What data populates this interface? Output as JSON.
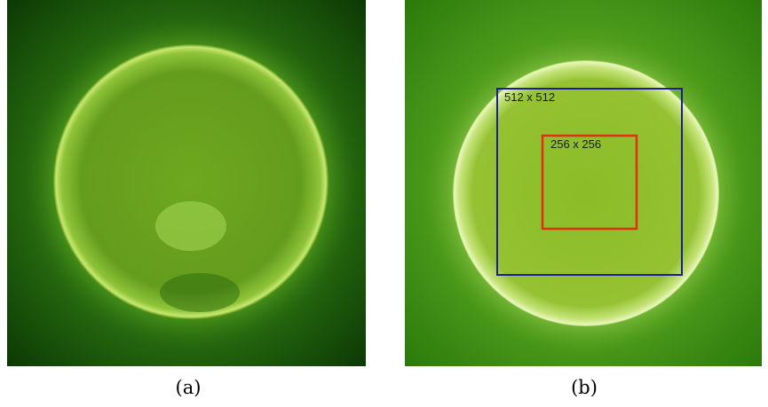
{
  "panels": [
    {
      "caption": "(a)"
    },
    {
      "caption": "(b)",
      "boxes": [
        {
          "label": "512 x 512"
        },
        {
          "label": "256 x 256"
        }
      ]
    }
  ]
}
